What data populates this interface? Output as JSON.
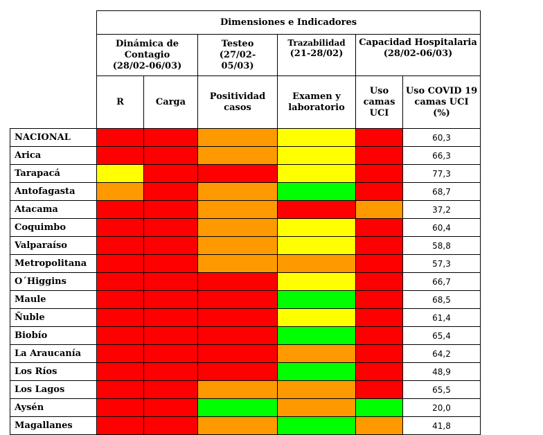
{
  "header": {
    "top": "Dimensiones e Indicadores",
    "groups": [
      "Dinámica de Contagio (28/02-06/03)",
      "Testeo (27/02-05/03)",
      "Trazabilidad (21-28/02)",
      "Capacidad Hospitalaria (28/02-06/03)"
    ],
    "group_lines": {
      "dinamica": [
        "Dinámica de",
        "Contagio",
        "(28/02-06/03)"
      ],
      "testeo": [
        "Testeo",
        "(27/02-",
        "05/03)"
      ],
      "trazabilidad": [
        "Trazabilidad",
        "(21-28/02)"
      ],
      "capacidad": [
        "Capacidad Hospitalaria",
        "(28/02-06/03)"
      ]
    },
    "columns": {
      "r": "R",
      "carga": [
        "Carga"
      ],
      "positividad": [
        "Positividad",
        "casos"
      ],
      "examen": [
        "Examen y",
        "laboratorio"
      ],
      "uso_camas": [
        "Uso",
        "camas",
        "UCI"
      ],
      "uso_covid": [
        "Uso COVID 19",
        "camas UCI",
        "(%)"
      ]
    }
  },
  "colors": {
    "red": "#ff0000",
    "orange": "#ff9900",
    "yellow": "#ffff00",
    "green": "#00ff00"
  },
  "rows": [
    {
      "region": "NACIONAL",
      "r": "red",
      "carga": "red",
      "positividad": "orange",
      "examen": "yellow",
      "uso_camas": "red",
      "uso_covid": "60,3"
    },
    {
      "region": "Arica",
      "r": "red",
      "carga": "red",
      "positividad": "orange",
      "examen": "yellow",
      "uso_camas": "red",
      "uso_covid": "66,3"
    },
    {
      "region": "Tarapacá",
      "r": "yellow",
      "carga": "red",
      "positividad": "red",
      "examen": "yellow",
      "uso_camas": "red",
      "uso_covid": "77,3"
    },
    {
      "region": "Antofagasta",
      "r": "orange",
      "carga": "red",
      "positividad": "orange",
      "examen": "green",
      "uso_camas": "red",
      "uso_covid": "68,7"
    },
    {
      "region": "Atacama",
      "r": "red",
      "carga": "red",
      "positividad": "orange",
      "examen": "red",
      "uso_camas": "orange",
      "uso_covid": "37,2"
    },
    {
      "region": "Coquimbo",
      "r": "red",
      "carga": "red",
      "positividad": "orange",
      "examen": "yellow",
      "uso_camas": "red",
      "uso_covid": "60,4"
    },
    {
      "region": "Valparaíso",
      "r": "red",
      "carga": "red",
      "positividad": "orange",
      "examen": "yellow",
      "uso_camas": "red",
      "uso_covid": "58,8"
    },
    {
      "region": "Metropolitana",
      "r": "red",
      "carga": "red",
      "positividad": "orange",
      "examen": "orange",
      "uso_camas": "red",
      "uso_covid": "57,3"
    },
    {
      "region": "O´Higgins",
      "r": "red",
      "carga": "red",
      "positividad": "red",
      "examen": "yellow",
      "uso_camas": "red",
      "uso_covid": "66,7"
    },
    {
      "region": "Maule",
      "r": "red",
      "carga": "red",
      "positividad": "red",
      "examen": "green",
      "uso_camas": "red",
      "uso_covid": "68,5"
    },
    {
      "region": "Ñuble",
      "r": "red",
      "carga": "red",
      "positividad": "red",
      "examen": "yellow",
      "uso_camas": "red",
      "uso_covid": "61,4"
    },
    {
      "region": "Biobío",
      "r": "red",
      "carga": "red",
      "positividad": "red",
      "examen": "green",
      "uso_camas": "red",
      "uso_covid": "65,4"
    },
    {
      "region": "La Araucanía",
      "r": "red",
      "carga": "red",
      "positividad": "red",
      "examen": "orange",
      "uso_camas": "red",
      "uso_covid": "64,2"
    },
    {
      "region": "Los Ríos",
      "r": "red",
      "carga": "red",
      "positividad": "red",
      "examen": "green",
      "uso_camas": "red",
      "uso_covid": "48,9"
    },
    {
      "region": "Los Lagos",
      "r": "red",
      "carga": "red",
      "positividad": "orange",
      "examen": "orange",
      "uso_camas": "red",
      "uso_covid": "65,5"
    },
    {
      "region": "Aysén",
      "r": "red",
      "carga": "red",
      "positividad": "green",
      "examen": "orange",
      "uso_camas": "green",
      "uso_covid": "20,0"
    },
    {
      "region": "Magallanes",
      "r": "red",
      "carga": "red",
      "positividad": "orange",
      "examen": "green",
      "uso_camas": "orange",
      "uso_covid": "41,8"
    }
  ]
}
